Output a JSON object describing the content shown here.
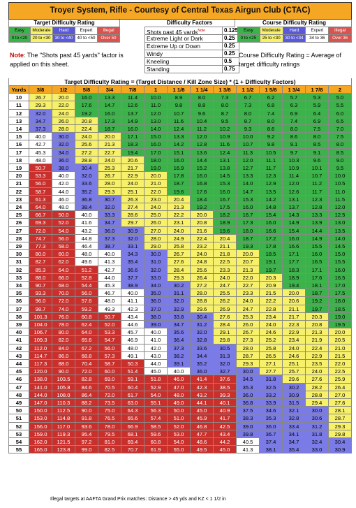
{
  "title": "Troyer System, Rifle - Courtesy of Central Texas Airgun Club (CTAC)",
  "target_rating": {
    "header": "Target Difficulty Rating",
    "labels": [
      "Easy",
      "Moderate",
      "Hard",
      "Expert",
      "Illegal"
    ],
    "ranges": [
      "0 to <20",
      "20 to <30",
      "30 to <40",
      "40 to <50",
      "Over 50"
    ],
    "colors": [
      "#3CB34A",
      "#F7F06A",
      "#7B7BE8",
      "#FFFFFF",
      "#D9534F"
    ]
  },
  "difficulty_factors": {
    "header": "Difficulty Factors",
    "items": [
      {
        "label": "Shots past 45 yards",
        "sup": "Note",
        "value": "0.125"
      },
      {
        "label": "Extreme Light or Dark",
        "value": "0.25"
      },
      {
        "label": "Extreme Up or Down",
        "value": "0.25"
      },
      {
        "label": "Windy",
        "value": "0.25"
      },
      {
        "label": "Kneeling",
        "value": "0.5"
      },
      {
        "label": "Standing",
        "value": "0.75"
      }
    ]
  },
  "course_rating": {
    "header": "Course Difficulty Rating",
    "labels": [
      "Easy",
      "Moderate",
      "Hard",
      "Expert",
      "Illegal"
    ],
    "ranges": [
      "0 to <25",
      "25 to <30",
      "30 to <34",
      "34 to 36",
      "Over 36"
    ],
    "note": "Course Difficulty Rating = Average of target difficulty ratings"
  },
  "note": {
    "label": "Note",
    "text": ": The \"Shots past 45 yards\" factor is applied on this sheet."
  },
  "formula": "Target Difficulty Rating = (Target Distance / Kill Zone Size) * (1 + Difficulty Factors)",
  "table": {
    "yards_header": "Yards",
    "sizes": [
      "3/8",
      "1/2",
      "5/8",
      "3/4",
      "7/8",
      "1",
      "1 1/8",
      "1 1/4",
      "1 3/8",
      "1 1/2",
      "1 5/8",
      "1 3/4",
      "1 7/8",
      "2"
    ],
    "rows": [
      {
        "y": "10",
        "v": [
          "26.7",
          "20.0",
          "16.0",
          "13.3",
          "11.4",
          "10.0",
          "8.9",
          "8.0",
          "7.3",
          "6.7",
          "6.2",
          "5.7",
          "5.3",
          "5.0"
        ]
      },
      {
        "y": "11",
        "v": [
          "29.3",
          "22.0",
          "17.6",
          "14.7",
          "12.6",
          "11.0",
          "9.8",
          "8.8",
          "8.0",
          "7.3",
          "6.8",
          "6.3",
          "5.9",
          "5.5"
        ]
      },
      {
        "y": "12",
        "v": [
          "32.0",
          "24.0",
          "19.2",
          "16.0",
          "13.7",
          "12.0",
          "10.7",
          "9.6",
          "8.7",
          "8.0",
          "7.4",
          "6.9",
          "6.4",
          "6.0"
        ]
      },
      {
        "y": "13",
        "v": [
          "34.7",
          "26.0",
          "20.8",
          "17.3",
          "14.9",
          "13.0",
          "11.6",
          "10.4",
          "9.5",
          "8.7",
          "8.0",
          "7.4",
          "6.9",
          "6.5"
        ]
      },
      {
        "y": "14",
        "v": [
          "37.3",
          "28.0",
          "22.4",
          "18.7",
          "16.0",
          "14.0",
          "12.4",
          "11.2",
          "10.2",
          "9.3",
          "8.6",
          "8.0",
          "7.5",
          "7.0"
        ]
      },
      {
        "y": "15",
        "v": [
          "40.0",
          "30.0",
          "24.0",
          "20.0",
          "17.1",
          "15.0",
          "13.3",
          "12.0",
          "10.9",
          "10.0",
          "9.2",
          "8.6",
          "8.0",
          "7.5"
        ]
      },
      {
        "y": "16",
        "v": [
          "42.7",
          "32.0",
          "25.6",
          "21.3",
          "18.3",
          "16.0",
          "14.2",
          "12.8",
          "11.6",
          "10.7",
          "9.8",
          "9.1",
          "8.5",
          "8.0"
        ]
      },
      {
        "y": "17",
        "v": [
          "45.3",
          "34.0",
          "27.2",
          "22.7",
          "19.4",
          "17.0",
          "15.1",
          "13.6",
          "12.4",
          "11.3",
          "10.5",
          "9.7",
          "9.1",
          "8.5"
        ]
      },
      {
        "y": "18",
        "v": [
          "48.0",
          "36.0",
          "28.8",
          "24.0",
          "20.6",
          "18.0",
          "16.0",
          "14.4",
          "13.1",
          "12.0",
          "11.1",
          "10.3",
          "9.6",
          "9.0"
        ]
      },
      {
        "y": "19",
        "v": [
          "50.7",
          "38.0",
          "30.4",
          "25.3",
          "21.7",
          "19.0",
          "16.9",
          "15.2",
          "13.8",
          "12.7",
          "11.7",
          "10.9",
          "10.1",
          "9.5"
        ]
      },
      {
        "y": "20",
        "v": [
          "53.3",
          "40.0",
          "32.0",
          "26.7",
          "22.9",
          "20.0",
          "17.8",
          "16.0",
          "14.5",
          "13.3",
          "12.3",
          "11.4",
          "10.7",
          "10.0"
        ]
      },
      {
        "y": "21",
        "v": [
          "56.0",
          "42.0",
          "33.6",
          "28.0",
          "24.0",
          "21.0",
          "18.7",
          "16.8",
          "15.3",
          "14.0",
          "12.9",
          "12.0",
          "11.2",
          "10.5"
        ]
      },
      {
        "y": "22",
        "v": [
          "58.7",
          "44.0",
          "35.2",
          "29.3",
          "25.1",
          "22.0",
          "19.6",
          "17.6",
          "16.0",
          "14.7",
          "13.5",
          "12.6",
          "11.7",
          "11.0"
        ]
      },
      {
        "y": "23",
        "v": [
          "61.3",
          "46.0",
          "36.8",
          "30.7",
          "26.3",
          "23.0",
          "20.4",
          "18.4",
          "16.7",
          "15.3",
          "14.2",
          "13.1",
          "12.3",
          "11.5"
        ]
      },
      {
        "y": "24",
        "v": [
          "64.0",
          "48.0",
          "38.4",
          "32.0",
          "27.4",
          "24.0",
          "21.3",
          "19.2",
          "17.5",
          "16.0",
          "14.8",
          "13.7",
          "12.8",
          "12.0"
        ]
      },
      {
        "y": "25",
        "v": [
          "66.7",
          "50.0",
          "40.0",
          "33.3",
          "28.6",
          "25.0",
          "22.2",
          "20.0",
          "18.2",
          "16.7",
          "15.4",
          "14.3",
          "13.3",
          "12.5"
        ]
      },
      {
        "y": "26",
        "v": [
          "69.3",
          "52.0",
          "41.6",
          "34.7",
          "29.7",
          "26.0",
          "23.1",
          "20.8",
          "18.9",
          "17.3",
          "16.0",
          "14.9",
          "13.9",
          "13.0"
        ]
      },
      {
        "y": "27",
        "v": [
          "72.0",
          "54.0",
          "43.2",
          "36.0",
          "30.9",
          "27.0",
          "24.0",
          "21.6",
          "19.6",
          "18.0",
          "16.6",
          "15.4",
          "14.4",
          "13.5"
        ]
      },
      {
        "y": "28",
        "v": [
          "74.7",
          "56.0",
          "44.8",
          "37.3",
          "32.0",
          "28.0",
          "24.9",
          "22.4",
          "20.4",
          "18.7",
          "17.2",
          "16.0",
          "14.9",
          "14.0"
        ]
      },
      {
        "y": "29",
        "v": [
          "77.3",
          "58.0",
          "46.4",
          "38.7",
          "33.1",
          "29.0",
          "25.8",
          "23.2",
          "21.1",
          "19.3",
          "17.8",
          "16.6",
          "15.5",
          "14.5"
        ]
      },
      {
        "y": "30",
        "v": [
          "80.0",
          "60.0",
          "48.0",
          "40.0",
          "34.3",
          "30.0",
          "26.7",
          "24.0",
          "21.8",
          "20.0",
          "18.5",
          "17.1",
          "16.0",
          "15.0"
        ]
      },
      {
        "y": "31",
        "v": [
          "82.7",
          "62.0",
          "49.6",
          "41.3",
          "35.4",
          "31.0",
          "27.6",
          "24.8",
          "22.5",
          "20.7",
          "19.1",
          "17.7",
          "16.5",
          "15.5"
        ]
      },
      {
        "y": "32",
        "v": [
          "85.3",
          "64.0",
          "51.2",
          "42.7",
          "36.6",
          "32.0",
          "28.4",
          "25.6",
          "23.3",
          "21.3",
          "19.7",
          "18.3",
          "17.1",
          "16.0"
        ]
      },
      {
        "y": "33",
        "v": [
          "88.0",
          "66.0",
          "52.8",
          "44.0",
          "37.7",
          "33.0",
          "29.3",
          "26.4",
          "24.0",
          "22.0",
          "20.3",
          "18.9",
          "17.6",
          "16.5"
        ]
      },
      {
        "y": "34",
        "v": [
          "90.7",
          "68.0",
          "54.4",
          "45.3",
          "38.9",
          "34.0",
          "30.2",
          "27.2",
          "24.7",
          "22.7",
          "20.9",
          "19.4",
          "18.1",
          "17.0"
        ]
      },
      {
        "y": "35",
        "v": [
          "93.3",
          "70.0",
          "56.0",
          "46.7",
          "40.0",
          "35.0",
          "31.1",
          "28.0",
          "25.5",
          "23.3",
          "21.5",
          "20.0",
          "18.7",
          "17.5"
        ]
      },
      {
        "y": "36",
        "v": [
          "96.0",
          "72.0",
          "57.6",
          "48.0",
          "41.1",
          "36.0",
          "32.0",
          "28.8",
          "26.2",
          "24.0",
          "22.2",
          "20.6",
          "19.2",
          "18.0"
        ]
      },
      {
        "y": "37",
        "v": [
          "98.7",
          "74.0",
          "59.2",
          "49.3",
          "42.3",
          "37.0",
          "32.9",
          "29.6",
          "26.9",
          "24.7",
          "22.8",
          "21.1",
          "19.7",
          "18.5"
        ]
      },
      {
        "y": "38",
        "v": [
          "101.3",
          "76.0",
          "60.8",
          "50.7",
          "43.4",
          "38.0",
          "33.8",
          "30.4",
          "27.6",
          "25.3",
          "23.4",
          "21.7",
          "20.3",
          "19.0"
        ]
      },
      {
        "y": "39",
        "v": [
          "104.0",
          "78.0",
          "62.4",
          "52.0",
          "44.6",
          "39.0",
          "34.7",
          "31.2",
          "28.4",
          "26.0",
          "24.0",
          "22.3",
          "20.8",
          "19.5"
        ]
      },
      {
        "y": "40",
        "v": [
          "106.7",
          "80.0",
          "64.0",
          "53.3",
          "45.7",
          "40.0",
          "35.6",
          "32.0",
          "29.1",
          "26.7",
          "24.6",
          "22.9",
          "21.3",
          "20.0"
        ]
      },
      {
        "y": "41",
        "v": [
          "109.3",
          "82.0",
          "65.6",
          "54.7",
          "46.9",
          "41.0",
          "36.4",
          "32.8",
          "29.8",
          "27.3",
          "25.2",
          "23.4",
          "21.9",
          "20.5"
        ]
      },
      {
        "y": "42",
        "v": [
          "112.0",
          "84.0",
          "67.2",
          "56.0",
          "48.0",
          "42.0",
          "37.3",
          "33.6",
          "30.5",
          "28.0",
          "25.8",
          "24.0",
          "22.4",
          "21.0"
        ]
      },
      {
        "y": "43",
        "v": [
          "114.7",
          "86.0",
          "68.8",
          "57.3",
          "49.1",
          "43.0",
          "38.2",
          "34.4",
          "31.3",
          "28.7",
          "26.5",
          "24.6",
          "22.9",
          "21.5"
        ]
      },
      {
        "y": "44",
        "v": [
          "117.3",
          "88.0",
          "70.4",
          "58.7",
          "50.3",
          "44.0",
          "39.1",
          "35.2",
          "32.0",
          "29.3",
          "27.1",
          "25.1",
          "23.5",
          "22.0"
        ]
      },
      {
        "y": "45",
        "v": [
          "120.0",
          "90.0",
          "72.0",
          "60.0",
          "51.4",
          "45.0",
          "40.0",
          "36.0",
          "32.7",
          "30.0",
          "27.7",
          "25.7",
          "24.0",
          "22.5"
        ]
      },
      {
        "y": "46",
        "v": [
          "138.0",
          "103.5",
          "82.8",
          "69.0",
          "59.1",
          "51.8",
          "46.0",
          "41.4",
          "37.6",
          "34.5",
          "31.8",
          "29.6",
          "27.6",
          "25.9"
        ]
      },
      {
        "y": "47",
        "v": [
          "141.0",
          "105.8",
          "84.6",
          "70.5",
          "60.4",
          "52.9",
          "47.0",
          "42.3",
          "38.5",
          "35.3",
          "32.5",
          "30.2",
          "28.2",
          "26.4"
        ]
      },
      {
        "y": "48",
        "v": [
          "144.0",
          "108.0",
          "86.4",
          "72.0",
          "61.7",
          "54.0",
          "48.0",
          "43.2",
          "39.3",
          "36.0",
          "33.2",
          "30.9",
          "28.8",
          "27.0"
        ]
      },
      {
        "y": "49",
        "v": [
          "147.0",
          "110.3",
          "88.2",
          "73.5",
          "63.0",
          "55.1",
          "49.0",
          "44.1",
          "40.1",
          "36.8",
          "33.9",
          "31.5",
          "29.4",
          "27.6"
        ]
      },
      {
        "y": "50",
        "v": [
          "150.0",
          "112.5",
          "90.0",
          "75.0",
          "64.3",
          "56.3",
          "50.0",
          "45.0",
          "40.9",
          "37.5",
          "34.6",
          "32.1",
          "30.0",
          "28.1"
        ]
      },
      {
        "y": "51",
        "v": [
          "153.0",
          "114.8",
          "91.8",
          "76.5",
          "65.6",
          "57.4",
          "51.0",
          "45.9",
          "41.7",
          "38.3",
          "35.3",
          "32.8",
          "30.6",
          "28.7"
        ]
      },
      {
        "y": "52",
        "v": [
          "156.0",
          "117.0",
          "93.6",
          "78.0",
          "66.9",
          "58.5",
          "52.0",
          "46.8",
          "42.5",
          "39.0",
          "36.0",
          "33.4",
          "31.2",
          "29.3"
        ]
      },
      {
        "y": "53",
        "v": [
          "159.0",
          "119.3",
          "95.4",
          "79.5",
          "68.1",
          "59.6",
          "53.0",
          "47.7",
          "43.4",
          "39.8",
          "36.7",
          "34.1",
          "31.8",
          "29.8"
        ]
      },
      {
        "y": "54",
        "v": [
          "162.0",
          "121.5",
          "97.2",
          "81.0",
          "69.4",
          "60.8",
          "54.0",
          "48.6",
          "44.2",
          "40.5",
          "37.4",
          "34.7",
          "32.4",
          "30.4"
        ]
      },
      {
        "y": "55",
        "v": [
          "165.0",
          "123.8",
          "99.0",
          "82.5",
          "70.7",
          "61.9",
          "55.0",
          "49.5",
          "45.0",
          "41.3",
          "38.1",
          "35.4",
          "33.0",
          "30.9"
        ]
      }
    ]
  },
  "footer": "Illegal targets at AAFTA Grand Prix matches: Distance > 45 yds and KZ < 1 1/2 in"
}
